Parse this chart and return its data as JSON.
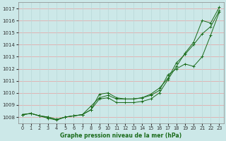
{
  "title": "Graphe pression niveau de la mer (hPa)",
  "background_color": "#cce8e8",
  "grid_color_h": "#e8a0a0",
  "grid_color_v": "#b8d8d8",
  "line_color": "#1a6b1a",
  "xlim": [
    -0.5,
    23.5
  ],
  "ylim": [
    1007.5,
    1017.5
  ],
  "yticks": [
    1008,
    1009,
    1010,
    1011,
    1012,
    1013,
    1014,
    1015,
    1016,
    1017
  ],
  "xticks": [
    0,
    1,
    2,
    3,
    4,
    5,
    6,
    7,
    8,
    9,
    10,
    11,
    12,
    13,
    14,
    15,
    16,
    17,
    18,
    19,
    20,
    21,
    22,
    23
  ],
  "series": [
    [
      1008.2,
      1008.3,
      1008.1,
      1008.0,
      1007.8,
      1008.0,
      1008.1,
      1008.2,
      1008.6,
      1009.5,
      1009.6,
      1009.2,
      1009.2,
      1009.2,
      1009.3,
      1009.5,
      1010.0,
      1011.1,
      1012.2,
      1013.3,
      1014.2,
      1016.0,
      1015.8,
      1017.1
    ],
    [
      1008.2,
      1008.3,
      1008.1,
      1007.9,
      1007.75,
      1008.0,
      1008.1,
      1008.2,
      1008.9,
      1009.6,
      1009.8,
      1009.5,
      1009.5,
      1009.5,
      1009.6,
      1009.9,
      1010.4,
      1011.2,
      1012.5,
      1013.2,
      1014.0,
      1014.9,
      1015.5,
      1016.8
    ],
    [
      1008.2,
      1008.3,
      1008.1,
      1008.0,
      1007.8,
      1008.0,
      1008.1,
      1008.2,
      1008.6,
      1009.9,
      1010.0,
      1009.6,
      1009.5,
      1009.5,
      1009.6,
      1009.8,
      1010.2,
      1011.5,
      1012.0,
      1012.4,
      1012.2,
      1013.0,
      1014.8,
      1016.7
    ]
  ],
  "figsize": [
    3.2,
    2.0
  ],
  "dpi": 100
}
